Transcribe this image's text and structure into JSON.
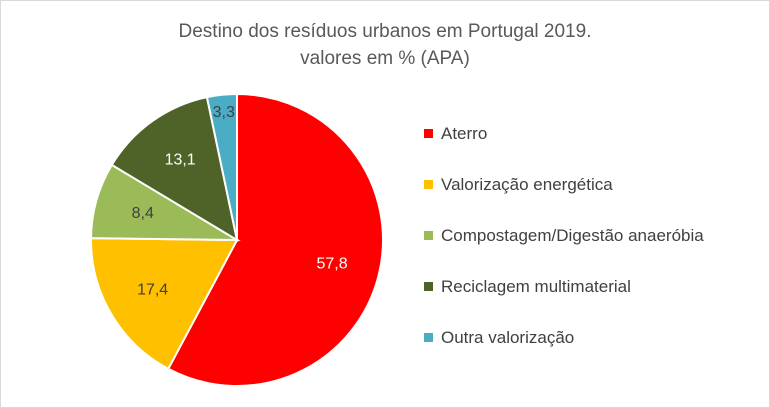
{
  "chart_data": {
    "type": "pie",
    "title": "Destino dos resíduos urbanos em Portugal 2019.",
    "subtitle": "valores em % (APA)",
    "categories": [
      "Aterro",
      "Valorização energética",
      "Compostagem/Digestão anaeróbia",
      "Reciclagem multimaterial",
      "Outra valorização"
    ],
    "values": [
      57.8,
      17.4,
      8.4,
      13.1,
      3.3
    ],
    "value_labels": [
      "57,8",
      "17,4",
      "8,4",
      "13,1",
      "3,3"
    ],
    "colors": [
      "#ff0000",
      "#ffc000",
      "#9bbb59",
      "#4f6228",
      "#4bacc6"
    ],
    "label_colors": [
      "#ffffff",
      "#404040",
      "#404040",
      "#ffffff",
      "#404040"
    ],
    "legend_position": "right"
  }
}
